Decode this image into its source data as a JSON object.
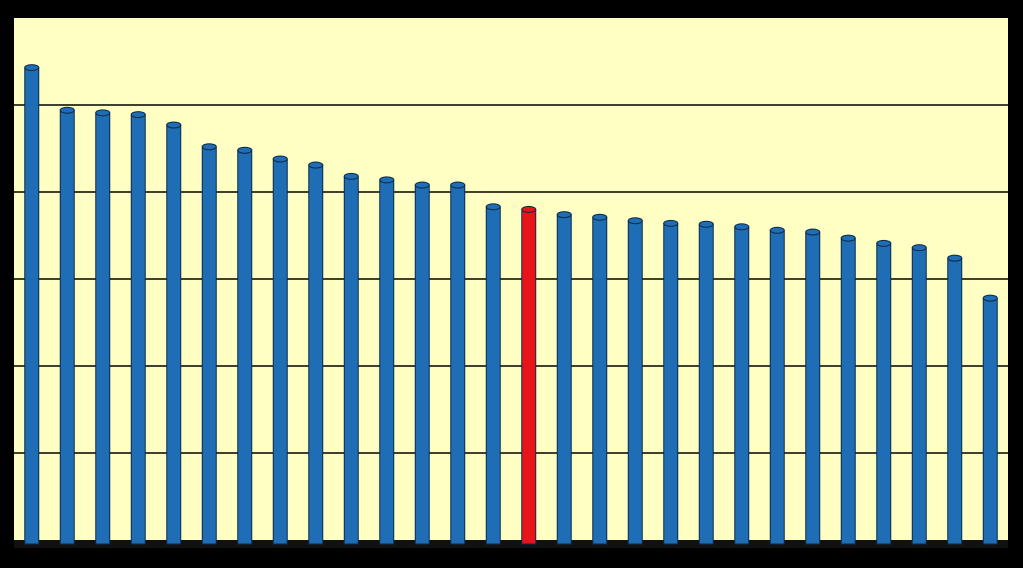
{
  "chart_data": {
    "type": "bar",
    "categories": [
      null,
      null,
      null,
      null,
      null,
      null,
      null,
      null,
      null,
      null,
      null,
      null,
      null,
      null,
      null,
      null,
      null,
      null,
      null,
      null,
      null,
      null,
      null,
      null,
      null,
      null,
      null,
      null
    ],
    "values": [
      5.43,
      4.94,
      4.91,
      4.89,
      4.77,
      4.52,
      4.48,
      4.38,
      4.31,
      4.18,
      4.14,
      4.08,
      4.08,
      3.83,
      3.8,
      3.74,
      3.71,
      3.67,
      3.64,
      3.63,
      3.6,
      3.56,
      3.54,
      3.47,
      3.41,
      3.36,
      3.24,
      2.78
    ],
    "colors": [
      "#1f6db4",
      "#1f6db4",
      "#1f6db4",
      "#1f6db4",
      "#1f6db4",
      "#1f6db4",
      "#1f6db4",
      "#1f6db4",
      "#1f6db4",
      "#1f6db4",
      "#1f6db4",
      "#1f6db4",
      "#1f6db4",
      "#1f6db4",
      "#e8141a",
      "#1f6db4",
      "#1f6db4",
      "#1f6db4",
      "#1f6db4",
      "#1f6db4",
      "#1f6db4",
      "#1f6db4",
      "#1f6db4",
      "#1f6db4",
      "#1f6db4",
      "#1f6db4",
      "#1f6db4",
      "#1f6db4"
    ],
    "ylim": [
      0,
      6
    ],
    "yticks": [
      1,
      2,
      3,
      4,
      5
    ],
    "grid": true
  }
}
